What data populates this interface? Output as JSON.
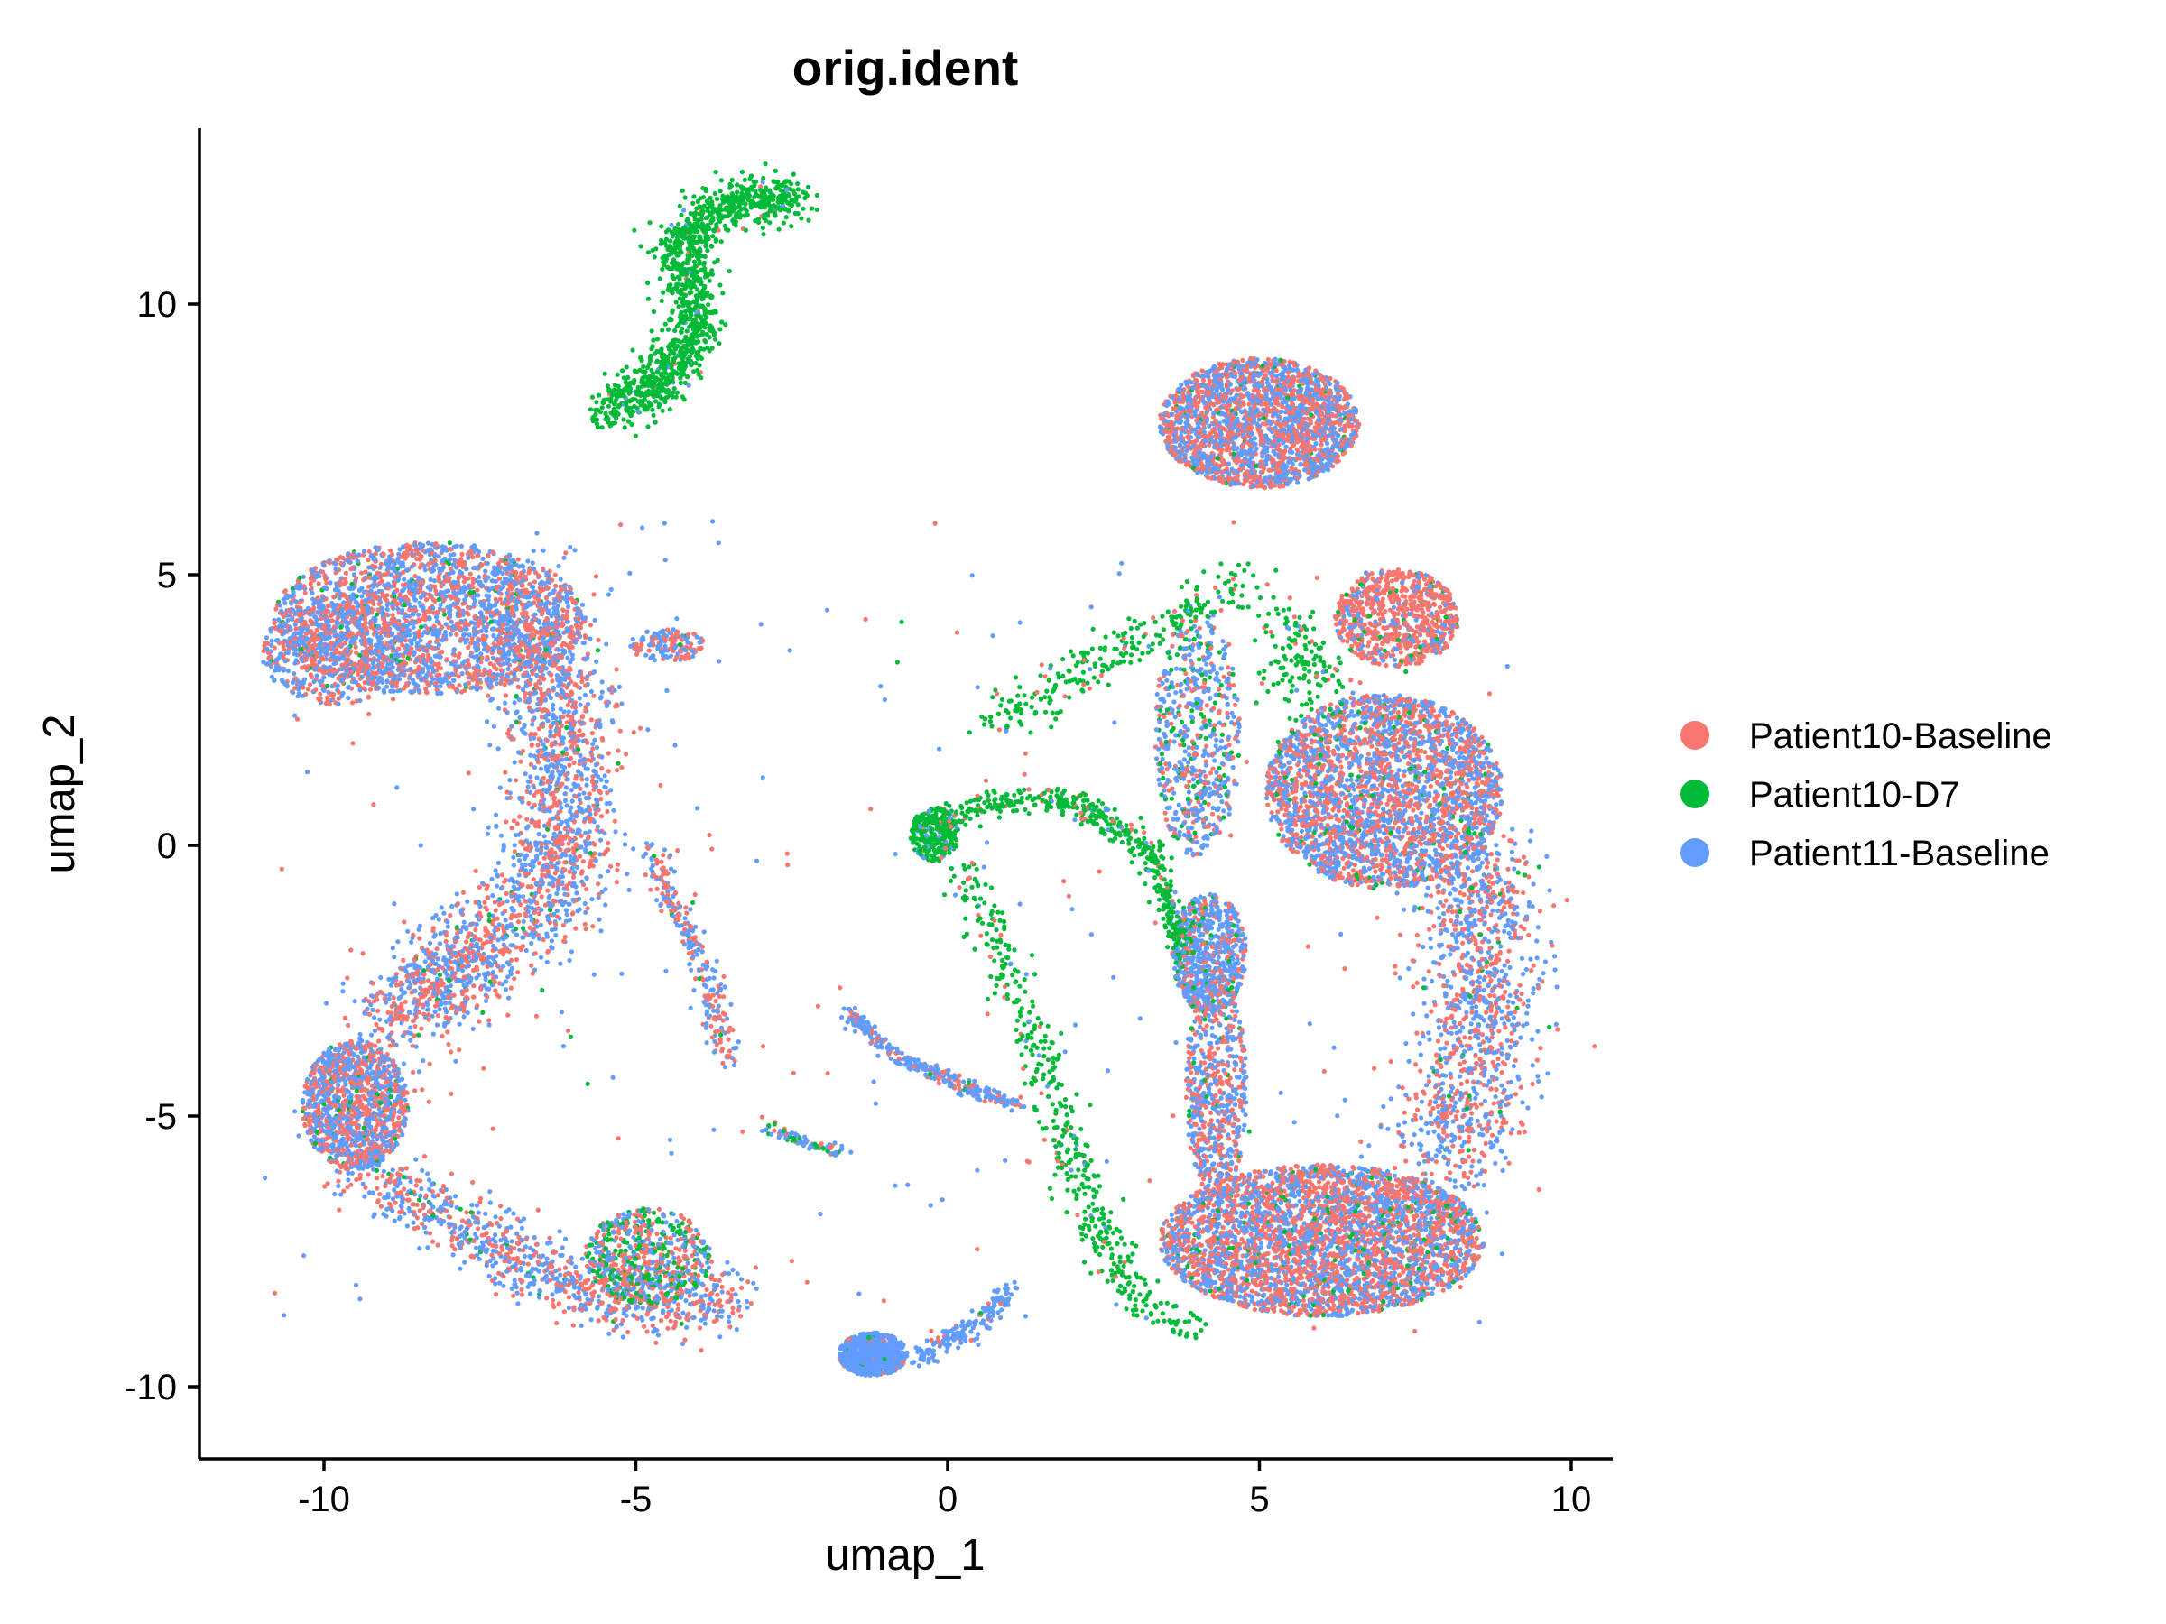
{
  "chart_data": {
    "type": "scatter",
    "title": "orig.ident",
    "xlabel": "umap_1",
    "ylabel": "umap_2",
    "xlim": [
      -12.3,
      10.4
    ],
    "ylim": [
      -11.0,
      13.2
    ],
    "xticks": [
      -10,
      -5,
      0,
      5,
      10
    ],
    "yticks": [
      -10,
      -5,
      0,
      5,
      10
    ],
    "xtick_labels": [
      "-10",
      "-5",
      "0",
      "5",
      "10"
    ],
    "ytick_labels": [
      "-10",
      "-5",
      "0",
      "5",
      "10"
    ],
    "grid": false,
    "legend_position": "right",
    "series": [
      {
        "name": "Patient10-Baseline",
        "color": "#F8766D"
      },
      {
        "name": "Patient10-D7",
        "color": "#00BA38"
      },
      {
        "name": "Patient11-Baseline",
        "color": "#619CFF"
      }
    ],
    "clusters": [
      {
        "region": "top-green-arc",
        "approx_center": [
          -4.2,
          10.0
        ],
        "dominant": "Patient10-D7"
      },
      {
        "region": "left-upper-blob",
        "approx_center": [
          -8.0,
          3.5
        ],
        "dominant": "mixed"
      },
      {
        "region": "left-lower-blob",
        "approx_center": [
          -9.5,
          -4.8
        ],
        "dominant": "mixed"
      },
      {
        "region": "left-bottom-arc",
        "approx_center": [
          -5.0,
          -7.8
        ],
        "dominant": "mixed"
      },
      {
        "region": "right-large-cluster",
        "approx_center": [
          6.5,
          0.5
        ],
        "dominant": "mixed"
      },
      {
        "region": "center-green-bridge",
        "approx_center": [
          1.5,
          -2.0
        ],
        "dominant": "Patient10-D7"
      },
      {
        "region": "bottom-center-blob",
        "approx_center": [
          -1.2,
          -9.5
        ],
        "dominant": "Patient11-Baseline"
      }
    ]
  }
}
